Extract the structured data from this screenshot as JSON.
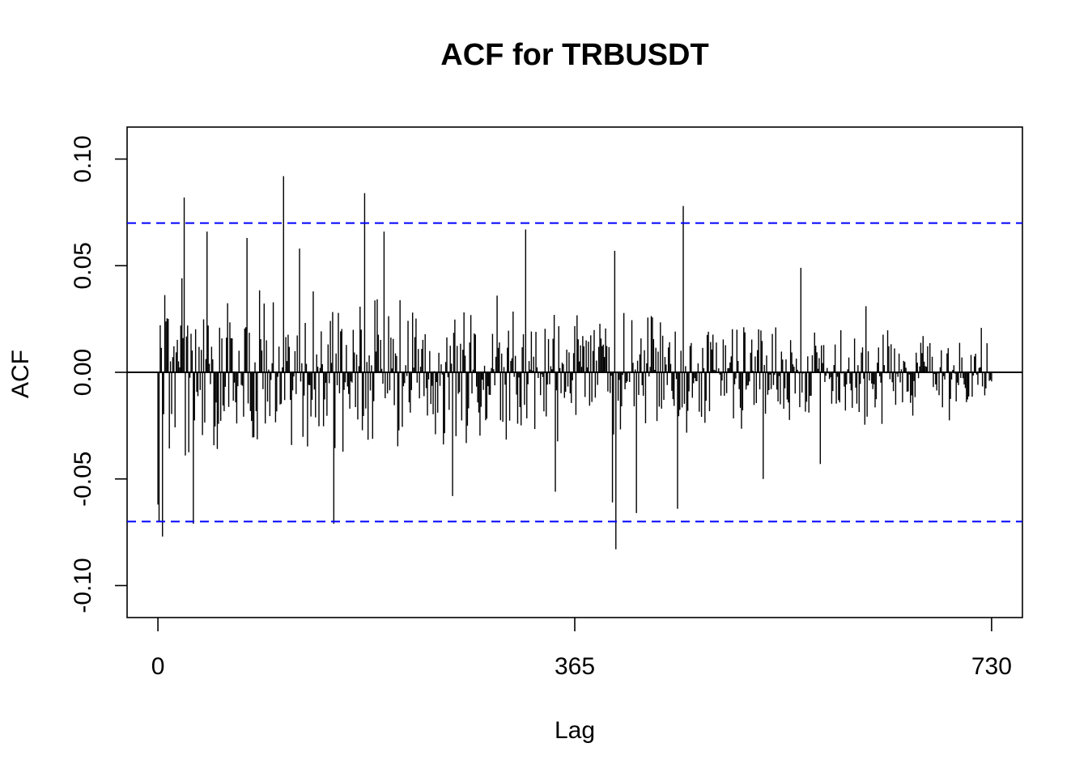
{
  "chart_data": {
    "type": "bar",
    "title": "ACF for TRBUSDT",
    "xlabel": "Lag",
    "ylabel": "ACF",
    "xlim": [
      -27,
      757
    ],
    "ylim": [
      -0.115,
      0.115
    ],
    "x_ticks": [
      0,
      365,
      730
    ],
    "x_tick_labels": [
      "0",
      "365",
      "730"
    ],
    "y_ticks": [
      -0.1,
      -0.05,
      0.0,
      0.05,
      0.1
    ],
    "y_tick_labels": [
      "-0.10",
      "-0.05",
      "0.00",
      "0.05",
      "0.10"
    ],
    "confidence_band": [
      -0.07,
      0.07
    ],
    "colors": {
      "bars": "#000000",
      "band": "#0000ff",
      "zero_line": "#000000"
    },
    "max_lag": 730,
    "acf_highlights": [
      {
        "lag": 0,
        "value": -0.062
      },
      {
        "lag": 1,
        "value": -0.07
      },
      {
        "lag": 4,
        "value": -0.077
      },
      {
        "lag": 23,
        "value": 0.082
      },
      {
        "lag": 31,
        "value": -0.071
      },
      {
        "lag": 43,
        "value": 0.066
      },
      {
        "lag": 78,
        "value": 0.063
      },
      {
        "lag": 110,
        "value": 0.092
      },
      {
        "lag": 124,
        "value": 0.058
      },
      {
        "lag": 154,
        "value": -0.071
      },
      {
        "lag": 181,
        "value": 0.084
      },
      {
        "lag": 198,
        "value": 0.066
      },
      {
        "lag": 258,
        "value": -0.058
      },
      {
        "lag": 322,
        "value": 0.067
      },
      {
        "lag": 348,
        "value": -0.056
      },
      {
        "lag": 400,
        "value": 0.057
      },
      {
        "lag": 398,
        "value": -0.061
      },
      {
        "lag": 401,
        "value": -0.083
      },
      {
        "lag": 419,
        "value": -0.066
      },
      {
        "lag": 455,
        "value": -0.064
      },
      {
        "lag": 460,
        "value": 0.078
      },
      {
        "lag": 530,
        "value": -0.05
      },
      {
        "lag": 563,
        "value": 0.049
      },
      {
        "lag": 580,
        "value": -0.043
      },
      {
        "lag": 620,
        "value": 0.031
      },
      {
        "lag": 670,
        "value": 0.017
      },
      {
        "lag": 728,
        "value": -0.004
      }
    ]
  }
}
